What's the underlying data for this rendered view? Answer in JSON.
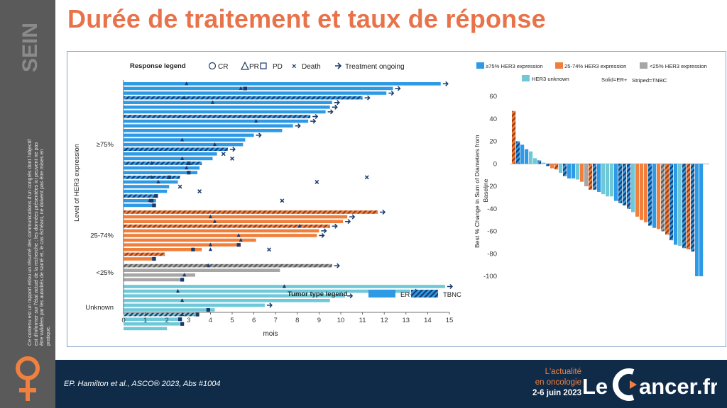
{
  "sidebar": {
    "tag": "SEIN",
    "disclaimer": "Ce contenu est un rapport et/ou un résumé des communications d'un congrès dont l'objectif est d'informer sur l'état actuel de la recherche ; les données présentées ici peuvent ne pas être validées par les autorités de santé et, le cas échéant, ne doivent pas être mises en pratique."
  },
  "header": {
    "title": "Durée de traitement et taux de réponse"
  },
  "footer": {
    "citation": "EP. Hamilton et al., ASCO® 2023, Abs #1004",
    "brand_line1": "L'actualité",
    "brand_line2": "en oncologie",
    "brand_date": "2-6 juin 2023",
    "logo_le": "Le",
    "logo_cancer": "ancer.fr"
  },
  "colors": {
    "accent": "#e8734a",
    "navy": "#0f2b48",
    "er_blue": "#2e9ae6",
    "dark_blue": "#1a3a6b",
    "orange": "#f07f3c",
    "dark_orange": "#c0501e",
    "gray": "#a6a6a6",
    "light_blue": "#6fc8d8"
  },
  "chart_data": [
    {
      "type": "bar",
      "orientation": "horizontal",
      "subtype": "swimmer",
      "xlabel": "mois",
      "ylabel": "Level of HER3 expression",
      "xlim": [
        0,
        15
      ],
      "xticks": [
        0,
        1,
        2,
        3,
        4,
        5,
        6,
        7,
        8,
        9,
        10,
        11,
        12,
        13,
        14,
        15
      ],
      "response_legend_title": "Response legend",
      "response_legend": [
        "CR",
        "PR",
        "PD",
        "Death",
        "Treatment ongoing"
      ],
      "tumor_legend_title": "Tumor type legend",
      "tumor_legend": [
        "ER+",
        "TBNC"
      ],
      "groups": [
        {
          "label": "≥75%",
          "bars": [
            {
              "value": 14.6,
              "type": "ER+",
              "pr": 2.9,
              "ongoing": true
            },
            {
              "value": 12.4,
              "type": "ER+",
              "pr": 5.4,
              "pd": 5.6,
              "ongoing": true
            },
            {
              "value": 12.1,
              "type": "ER+",
              "ongoing": true
            },
            {
              "value": 11,
              "type": "TBNC",
              "pr": 2.8,
              "ongoing": true
            },
            {
              "value": 9.6,
              "type": "ER+",
              "pr": 4.1,
              "ongoing": true
            },
            {
              "value": 9.5,
              "type": "ER+",
              "ongoing": true
            },
            {
              "value": 9.3,
              "type": "ER+",
              "ongoing": true
            },
            {
              "value": 8.6,
              "type": "TBNC",
              "ongoing": true
            },
            {
              "value": 8.5,
              "type": "ER+",
              "pr": 6.1,
              "ongoing": true
            },
            {
              "value": 7.8,
              "type": "ER+",
              "ongoing": true
            },
            {
              "value": 7.3,
              "type": "ER+"
            },
            {
              "value": 6,
              "type": "ER+",
              "ongoing": true
            },
            {
              "value": 5.6,
              "type": "ER+",
              "pr": 2.7
            },
            {
              "value": 5.5,
              "type": "ER+",
              "pr": 4.2
            },
            {
              "value": 4.8,
              "type": "TBNC",
              "ongoing": true
            },
            {
              "value": 4.3,
              "type": "ER+",
              "death": 4.6
            },
            {
              "value": 4.1,
              "type": "ER+",
              "pr": 2.7,
              "death": 5
            },
            {
              "value": 3.6,
              "type": "TBNC",
              "pr": 1.3,
              "pd": 3
            },
            {
              "value": 3.5,
              "type": "ER+",
              "pr": 2.9
            },
            {
              "value": 3.4,
              "type": "ER+",
              "pd": 3
            },
            {
              "value": 2.6,
              "type": "TBNC",
              "pr": 1.3,
              "pd": 2.1,
              "death": 11.2
            },
            {
              "value": 2.5,
              "type": "ER+",
              "pr": 1.6,
              "death": 8.9
            },
            {
              "value": 2.1,
              "type": "ER+",
              "death": 2.6
            },
            {
              "value": 2,
              "type": "ER+",
              "death": 3.5
            },
            {
              "value": 1.5,
              "type": "TBNC",
              "pd": 1.5
            },
            {
              "value": 1.5,
              "type": "ER+",
              "pr": 1.2,
              "pd": 1.3,
              "death": 7.3
            },
            {
              "value": 1.5,
              "type": "ER+",
              "pd": 1.4
            }
          ]
        },
        {
          "label": "25-74%",
          "bars": [
            {
              "value": 11.7,
              "type": "TBNC",
              "ongoing": true
            },
            {
              "value": 10.3,
              "type": "ER+",
              "pr": 4,
              "ongoing": true
            },
            {
              "value": 10.1,
              "type": "ER+",
              "pr": 4.2,
              "ongoing": true
            },
            {
              "value": 9.5,
              "type": "TBNC",
              "pr": 8.1,
              "ongoing": true
            },
            {
              "value": 9,
              "type": "ER+",
              "ongoing": true
            },
            {
              "value": 8.9,
              "type": "ER+",
              "pr": 5.3,
              "ongoing": true
            },
            {
              "value": 6.1,
              "type": "ER+",
              "pr": 5.4
            },
            {
              "value": 5.4,
              "type": "ER+",
              "pr": 4,
              "pd": 5.3
            },
            {
              "value": 3.6,
              "type": "ER+",
              "pr": 4,
              "pd": 3.2,
              "death": 6.7
            },
            {
              "value": 1.9,
              "type": "TBNC"
            },
            {
              "value": 1.5,
              "type": "ER+",
              "pd": 1.4
            }
          ]
        },
        {
          "label": "<25%",
          "bars": [
            {
              "value": 9.6,
              "type": "TBNC",
              "pr": 3.9,
              "ongoing": true
            },
            {
              "value": 7.2,
              "type": "ER+"
            },
            {
              "value": 3.3,
              "type": "ER+",
              "pr": 2.8
            },
            {
              "value": 2.7,
              "type": "ER+",
              "pr": 2.7,
              "pd": 2.7
            }
          ]
        },
        {
          "label": "Unknown",
          "bars": [
            {
              "value": 14.8,
              "type": "ER+",
              "pr": 7.4,
              "ongoing": true
            },
            {
              "value": 13.2,
              "type": "ER+",
              "pr": 2.5,
              "ongoing": true
            },
            {
              "value": 10.2,
              "type": "ER+",
              "ongoing": true
            },
            {
              "value": 9.5,
              "type": "ER+",
              "pr": 2.7
            },
            {
              "value": 6.5,
              "type": "ER+",
              "ongoing": true
            },
            {
              "value": 4.2,
              "type": "ER+",
              "pd": 3.9
            },
            {
              "value": 3.3,
              "type": "TBNC",
              "pr": 2.7,
              "pd": 3.4
            },
            {
              "value": 2.7,
              "type": "ER+",
              "pd": 2.6
            },
            {
              "value": 2.6,
              "type": "ER+",
              "pd": 2.7
            },
            {
              "value": 2,
              "type": "ER+"
            }
          ]
        }
      ]
    },
    {
      "type": "bar",
      "subtype": "waterfall",
      "ylabel": "Best % Change in Sum of Diameters from Baseline",
      "ylim": [
        -100,
        60
      ],
      "yticks": [
        60,
        40,
        20,
        0,
        -20,
        -40,
        -60,
        -80,
        -100
      ],
      "legend": [
        {
          "label": "≥75% HER3 expression",
          "color": "#2e9ae6"
        },
        {
          "label": "25-74% HER3 expression",
          "color": "#f07f3c"
        },
        {
          "label": "<25% HER3 expression",
          "color": "#a6a6a6"
        },
        {
          "label": "HER3 unknown",
          "color": "#6fc8d8"
        }
      ],
      "note_solid": "Solid=ER+",
      "note_striped": "Striped=TNBC",
      "bars": [
        {
          "v": 47,
          "g": "mid",
          "t": "TBNC"
        },
        {
          "v": 20,
          "g": "high",
          "t": "TBNC"
        },
        {
          "v": 17,
          "g": "high",
          "t": "ER+"
        },
        {
          "v": 13,
          "g": "high",
          "t": "ER+"
        },
        {
          "v": 11,
          "g": "unk",
          "t": "ER+"
        },
        {
          "v": 5,
          "g": "unk",
          "t": "ER+"
        },
        {
          "v": 3,
          "g": "high",
          "t": "TBNC"
        },
        {
          "v": 1,
          "g": "unk",
          "t": "ER+"
        },
        {
          "v": -2,
          "g": "high",
          "t": "TBNC"
        },
        {
          "v": -4,
          "g": "mid",
          "t": "ER+"
        },
        {
          "v": -5,
          "g": "mid",
          "t": "TBNC"
        },
        {
          "v": -8,
          "g": "unk",
          "t": "ER+"
        },
        {
          "v": -11,
          "g": "high",
          "t": "TBNC"
        },
        {
          "v": -13,
          "g": "high",
          "t": "ER+"
        },
        {
          "v": -13,
          "g": "high",
          "t": "ER+"
        },
        {
          "v": -14,
          "g": "unk",
          "t": "ER+"
        },
        {
          "v": -16,
          "g": "mid",
          "t": "ER+"
        },
        {
          "v": -20,
          "g": "gray",
          "t": "ER+"
        },
        {
          "v": -23,
          "g": "mid",
          "t": "TBNC"
        },
        {
          "v": -23,
          "g": "high",
          "t": "TBNC"
        },
        {
          "v": -25,
          "g": "high",
          "t": "ER+"
        },
        {
          "v": -27,
          "g": "unk",
          "t": "ER+"
        },
        {
          "v": -29,
          "g": "unk",
          "t": "ER+"
        },
        {
          "v": -29,
          "g": "unk",
          "t": "ER+"
        },
        {
          "v": -33,
          "g": "high",
          "t": "ER+"
        },
        {
          "v": -35,
          "g": "high",
          "t": "TBNC"
        },
        {
          "v": -37,
          "g": "high",
          "t": "TBNC"
        },
        {
          "v": -40,
          "g": "high",
          "t": "TBNC"
        },
        {
          "v": -43,
          "g": "unk",
          "t": "ER+"
        },
        {
          "v": -47,
          "g": "mid",
          "t": "ER+"
        },
        {
          "v": -50,
          "g": "mid",
          "t": "ER+"
        },
        {
          "v": -52,
          "g": "mid",
          "t": "ER+"
        },
        {
          "v": -55,
          "g": "high",
          "t": "TBNC"
        },
        {
          "v": -57,
          "g": "high",
          "t": "ER+"
        },
        {
          "v": -58,
          "g": "mid",
          "t": "ER+"
        },
        {
          "v": -60,
          "g": "gray",
          "t": "TBNC"
        },
        {
          "v": -63,
          "g": "mid",
          "t": "TBNC"
        },
        {
          "v": -68,
          "g": "high",
          "t": "TBNC"
        },
        {
          "v": -72,
          "g": "high",
          "t": "ER+"
        },
        {
          "v": -73,
          "g": "unk",
          "t": "ER+"
        },
        {
          "v": -75,
          "g": "high",
          "t": "TBNC"
        },
        {
          "v": -76,
          "g": "mid",
          "t": "TBNC"
        },
        {
          "v": -78,
          "g": "high",
          "t": "TBNC"
        },
        {
          "v": -100,
          "g": "high",
          "t": "ER+"
        },
        {
          "v": -100,
          "g": "high",
          "t": "ER+"
        }
      ]
    }
  ]
}
